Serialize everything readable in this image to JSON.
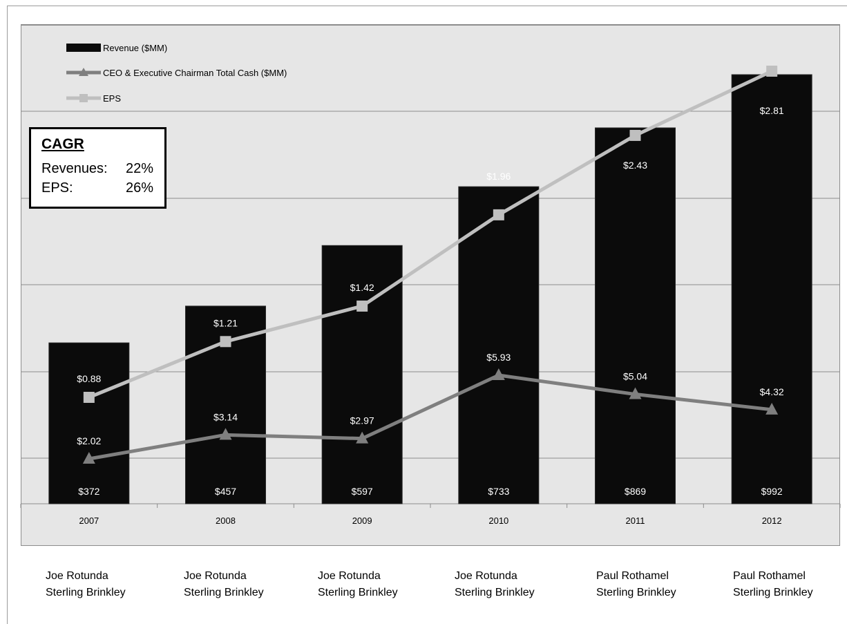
{
  "chart_data": {
    "type": "bar",
    "categories": [
      "2007",
      "2008",
      "2009",
      "2010",
      "2011",
      "2012"
    ],
    "series": [
      {
        "name": "Revenue ($MM)",
        "kind": "bar",
        "values": [
          372,
          457,
          597,
          733,
          869,
          992
        ],
        "labels": [
          "$372",
          "$457",
          "$597",
          "$733",
          "$869",
          "$992"
        ],
        "color": "#0b0b0b"
      },
      {
        "name": "CEO & Executive Chairman Total Cash ($MM)",
        "kind": "line",
        "marker": "triangle",
        "values": [
          2.02,
          3.14,
          2.97,
          5.93,
          5.04,
          4.32
        ],
        "labels": [
          "$2.02",
          "$3.14",
          "$2.97",
          "$5.93",
          "$5.04",
          "$4.32"
        ],
        "color": "#7f7f7f"
      },
      {
        "name": "EPS",
        "kind": "line",
        "marker": "square",
        "values": [
          0.88,
          1.21,
          1.42,
          1.96,
          2.43,
          2.81
        ],
        "labels": [
          "$0.88",
          "$1.21",
          "$1.42",
          "$1.96",
          "$2.43",
          "$2.81"
        ],
        "color": "#bfbfbf"
      }
    ],
    "title": "",
    "xlabel": "",
    "ylabel": "",
    "bar_ylim": [
      0,
      1000
    ],
    "grid": true,
    "legend_position": "top-left"
  },
  "cagr": {
    "title": "CAGR",
    "rows": [
      {
        "label": "Revenues:",
        "value": "22%"
      },
      {
        "label": "EPS:",
        "value": "26%"
      }
    ]
  },
  "executives": [
    {
      "line1": "Joe Rotunda",
      "line2": "Sterling Brinkley"
    },
    {
      "line1": "Joe Rotunda",
      "line2": "Sterling Brinkley"
    },
    {
      "line1": "Joe Rotunda",
      "line2": "Sterling Brinkley"
    },
    {
      "line1": "Joe Rotunda",
      "line2": "Sterling Brinkley"
    },
    {
      "line1": "Paul Rothamel",
      "line2": "Sterling Brinkley"
    },
    {
      "line1": "Paul Rothamel",
      "line2": "Sterling Brinkley"
    }
  ]
}
